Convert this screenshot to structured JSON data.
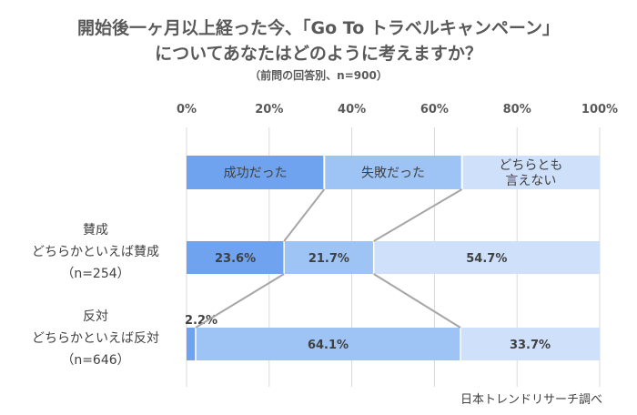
{
  "title_line1": "開始後一ヶ月以上経った今、「Go To トラベルキャンペーン」",
  "title_line2": "についてあなたはどのように考えますか？",
  "subtitle": "（前問の回答別、n=900）",
  "source": "日本トレンドリサーチ調べ",
  "colors": {
    "success": "#6fa3ef",
    "failure": "#9ec3f5",
    "neither": "#cfe0fb",
    "connector": "#a6a6a6",
    "grid": "#d9d9d9"
  },
  "chart_data": {
    "type": "bar",
    "orientation": "horizontal",
    "stacked": true,
    "xlim": [
      0,
      100
    ],
    "x_ticks": [
      "0%",
      "20%",
      "40%",
      "60%",
      "80%",
      "100%"
    ],
    "legend_bar": [
      "成功だった",
      "失敗だった",
      "どちらとも\n言えない"
    ],
    "categories": [
      {
        "lines": [
          "賛成",
          "どちらかといえば賛成",
          "（n=254）"
        ]
      },
      {
        "lines": [
          "反対",
          "どちらかといえば反対",
          "（n=646）"
        ]
      }
    ],
    "series": [
      {
        "name": "成功だった",
        "values": [
          23.6,
          2.2
        ],
        "labels": [
          "23.6%",
          "2.2%"
        ]
      },
      {
        "name": "失敗だった",
        "values": [
          21.7,
          64.1
        ],
        "labels": [
          "21.7%",
          "64.1%"
        ]
      },
      {
        "name": "どちらとも言えない",
        "values": [
          54.7,
          33.7
        ],
        "labels": [
          "54.7%",
          "33.7%"
        ]
      }
    ]
  }
}
